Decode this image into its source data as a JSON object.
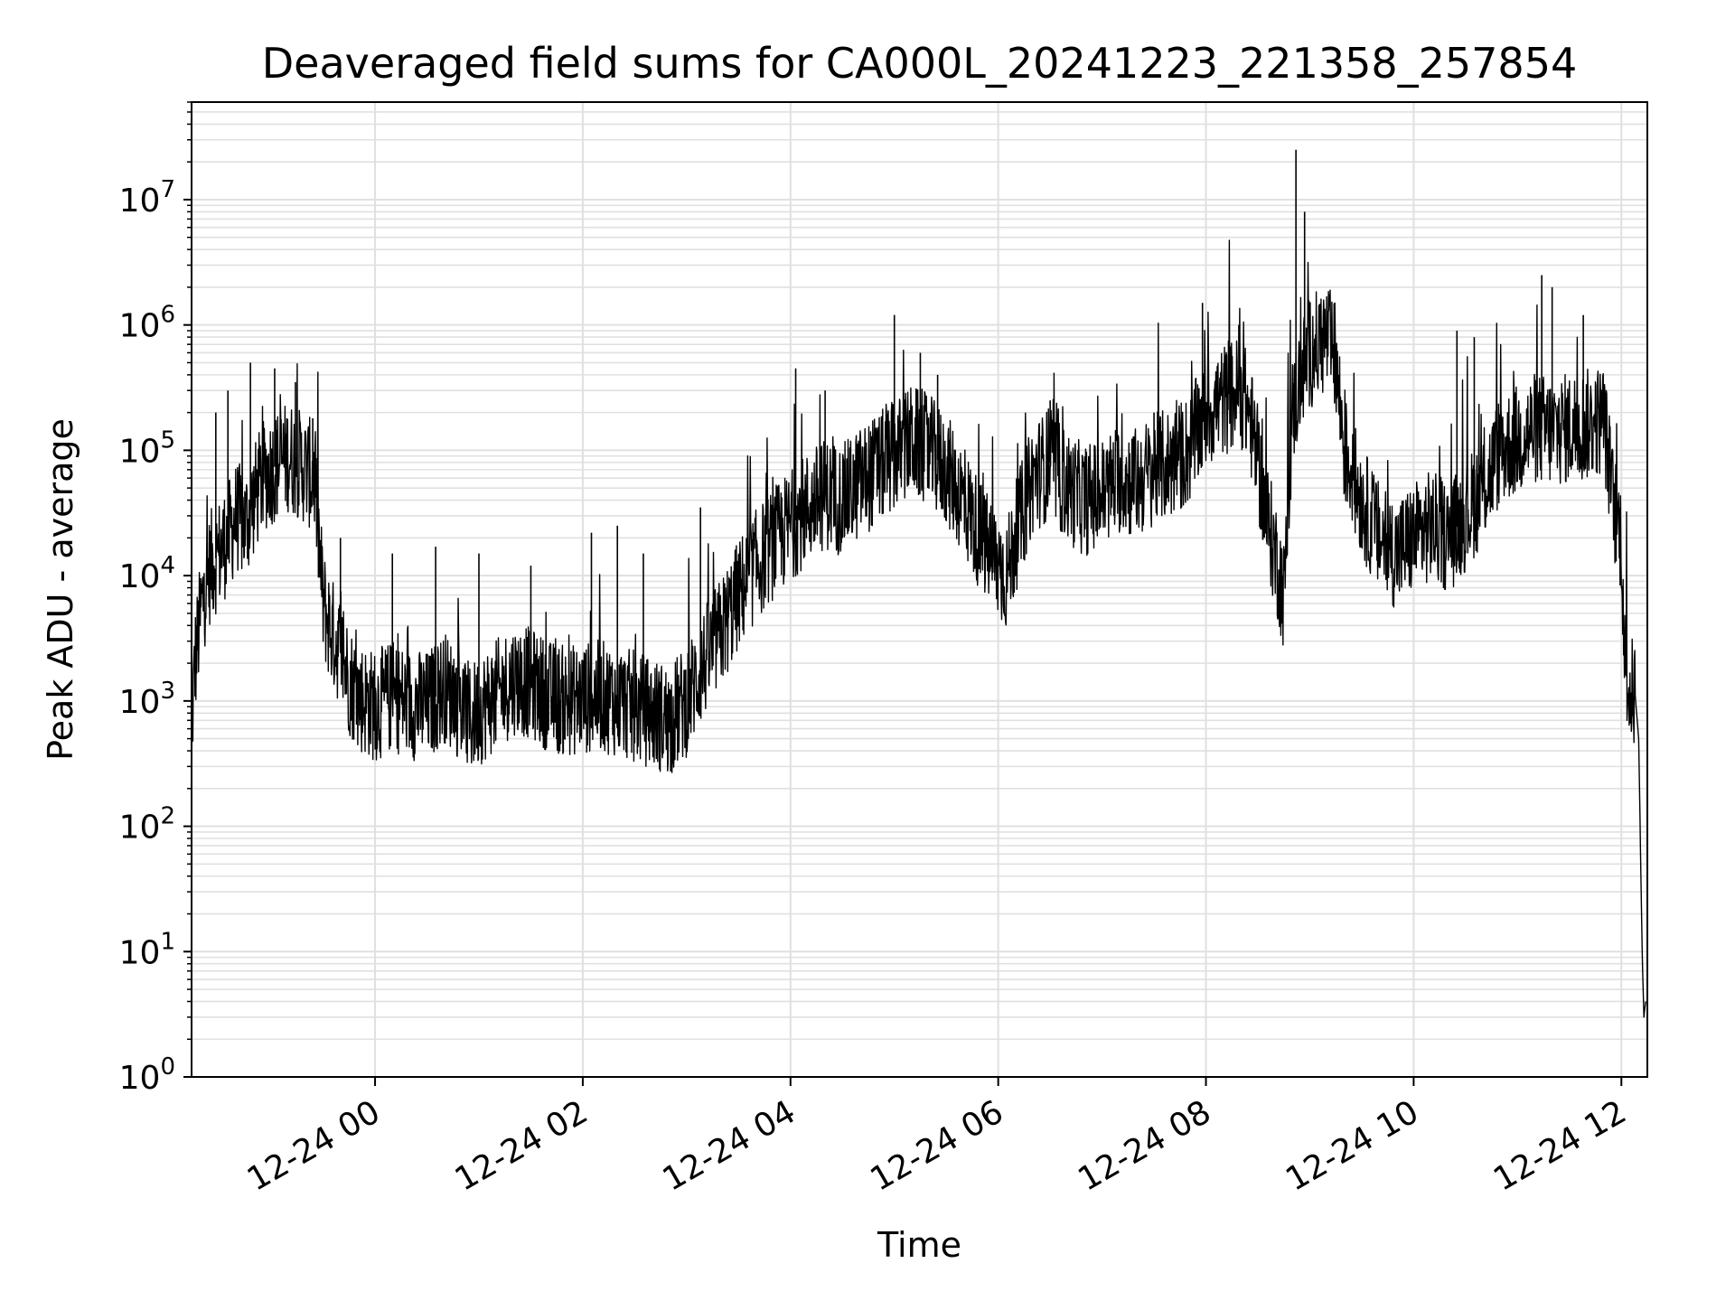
{
  "chart_data": {
    "type": "line",
    "title": "Deaveraged field sums for CA000L_20241223_221358_257854",
    "xlabel": "Time",
    "ylabel": "Peak ADU - average",
    "yscale": "log",
    "ylim": [
      1,
      60000000
    ],
    "xlim": [
      "2024-12-23 22:14",
      "2024-12-24 12:15"
    ],
    "grid": true,
    "line_color": "#000000",
    "grid_color": "#e0e0e0",
    "x_ticks": [
      {
        "time": "2024-12-24 00:00",
        "label": "12-24 00"
      },
      {
        "time": "2024-12-24 02:00",
        "label": "12-24 02"
      },
      {
        "time": "2024-12-24 04:00",
        "label": "12-24 04"
      },
      {
        "time": "2024-12-24 06:00",
        "label": "12-24 06"
      },
      {
        "time": "2024-12-24 08:00",
        "label": "12-24 08"
      },
      {
        "time": "2024-12-24 10:00",
        "label": "12-24 10"
      },
      {
        "time": "2024-12-24 12:00",
        "label": "12-24 12"
      }
    ],
    "y_ticks": [
      {
        "value": 1,
        "base": "10",
        "exp": "0"
      },
      {
        "value": 10,
        "base": "10",
        "exp": "1"
      },
      {
        "value": 100,
        "base": "10",
        "exp": "2"
      },
      {
        "value": 1000,
        "base": "10",
        "exp": "3"
      },
      {
        "value": 10000,
        "base": "10",
        "exp": "4"
      },
      {
        "value": 100000,
        "base": "10",
        "exp": "5"
      },
      {
        "value": 1000000,
        "base": "10",
        "exp": "6"
      },
      {
        "value": 10000000,
        "base": "10",
        "exp": "7"
      }
    ],
    "series": [
      {
        "points": [
          [
            "2024-12-23 22:14",
            600
          ],
          [
            "2024-12-23 22:16",
            2000
          ],
          [
            "2024-12-23 22:20",
            6000
          ],
          [
            "2024-12-23 22:25",
            12000
          ],
          [
            "2024-12-23 22:30",
            15000
          ],
          [
            "2024-12-23 22:35",
            20000
          ],
          [
            "2024-12-23 22:40",
            30000
          ],
          [
            "2024-12-23 22:45",
            25000
          ],
          [
            "2024-12-23 22:50",
            40000
          ],
          [
            "2024-12-23 22:55",
            60000
          ],
          [
            "2024-12-23 23:00",
            70000
          ],
          [
            "2024-12-23 23:05",
            80000
          ],
          [
            "2024-12-23 23:10",
            90000
          ],
          [
            "2024-12-23 23:15",
            80000
          ],
          [
            "2024-12-23 23:20",
            70000
          ],
          [
            "2024-12-23 23:25",
            60000
          ],
          [
            "2024-12-23 23:28",
            15000
          ],
          [
            "2024-12-23 23:30",
            6000
          ],
          [
            "2024-12-23 23:35",
            3500
          ],
          [
            "2024-12-23 23:40",
            2500
          ],
          [
            "2024-12-23 23:45",
            1500
          ],
          [
            "2024-12-23 23:50",
            1100
          ],
          [
            "2024-12-23 23:55",
            1000
          ],
          [
            "2024-12-24 00:00",
            900
          ],
          [
            "2024-12-24 00:10",
            1100
          ],
          [
            "2024-12-24 00:20",
            950
          ],
          [
            "2024-12-24 00:30",
            900
          ],
          [
            "2024-12-24 00:40",
            1300
          ],
          [
            "2024-12-24 00:50",
            900
          ],
          [
            "2024-12-24 00:55",
            700
          ],
          [
            "2024-12-24 01:00",
            850
          ],
          [
            "2024-12-24 01:10",
            1100
          ],
          [
            "2024-12-24 01:20",
            1500
          ],
          [
            "2024-12-24 01:30",
            1400
          ],
          [
            "2024-12-24 01:40",
            1100
          ],
          [
            "2024-12-24 01:50",
            1000
          ],
          [
            "2024-12-24 02:00",
            1050
          ],
          [
            "2024-12-24 02:10",
            1100
          ],
          [
            "2024-12-24 02:20",
            1000
          ],
          [
            "2024-12-24 02:30",
            900
          ],
          [
            "2024-12-24 02:40",
            800
          ],
          [
            "2024-12-24 02:50",
            700
          ],
          [
            "2024-12-24 03:00",
            1000
          ],
          [
            "2024-12-24 03:10",
            2000
          ],
          [
            "2024-12-24 03:20",
            3500
          ],
          [
            "2024-12-24 03:30",
            7000
          ],
          [
            "2024-12-24 03:40",
            12000
          ],
          [
            "2024-12-24 03:50",
            18000
          ],
          [
            "2024-12-24 04:00",
            25000
          ],
          [
            "2024-12-24 04:10",
            35000
          ],
          [
            "2024-12-24 04:20",
            45000
          ],
          [
            "2024-12-24 04:30",
            40000
          ],
          [
            "2024-12-24 04:40",
            55000
          ],
          [
            "2024-12-24 04:50",
            70000
          ],
          [
            "2024-12-24 05:00",
            90000
          ],
          [
            "2024-12-24 05:10",
            120000
          ],
          [
            "2024-12-24 05:20",
            100000
          ],
          [
            "2024-12-24 05:30",
            70000
          ],
          [
            "2024-12-24 05:40",
            40000
          ],
          [
            "2024-12-24 05:50",
            20000
          ],
          [
            "2024-12-24 06:00",
            12000
          ],
          [
            "2024-12-24 06:05",
            10000
          ],
          [
            "2024-12-24 06:10",
            20000
          ],
          [
            "2024-12-24 06:20",
            60000
          ],
          [
            "2024-12-24 06:30",
            80000
          ],
          [
            "2024-12-24 06:40",
            50000
          ],
          [
            "2024-12-24 06:50",
            40000
          ],
          [
            "2024-12-24 07:00",
            45000
          ],
          [
            "2024-12-24 07:10",
            60000
          ],
          [
            "2024-12-24 07:20",
            55000
          ],
          [
            "2024-12-24 07:30",
            70000
          ],
          [
            "2024-12-24 07:40",
            80000
          ],
          [
            "2024-12-24 07:50",
            100000
          ],
          [
            "2024-12-24 08:00",
            200000
          ],
          [
            "2024-12-24 08:10",
            250000
          ],
          [
            "2024-12-24 08:20",
            300000
          ],
          [
            "2024-12-24 08:25",
            200000
          ],
          [
            "2024-12-24 08:30",
            80000
          ],
          [
            "2024-12-24 08:35",
            30000
          ],
          [
            "2024-12-24 08:40",
            15000
          ],
          [
            "2024-12-24 08:45",
            7000
          ],
          [
            "2024-12-24 08:50",
            200000
          ],
          [
            "2024-12-24 08:55",
            400000
          ],
          [
            "2024-12-24 09:00",
            600000
          ],
          [
            "2024-12-24 09:10",
            800000
          ],
          [
            "2024-12-24 09:15",
            500000
          ],
          [
            "2024-12-24 09:20",
            100000
          ],
          [
            "2024-12-24 09:30",
            40000
          ],
          [
            "2024-12-24 09:40",
            20000
          ],
          [
            "2024-12-24 09:50",
            15000
          ],
          [
            "2024-12-24 10:00",
            20000
          ],
          [
            "2024-12-24 10:10",
            25000
          ],
          [
            "2024-12-24 10:20",
            20000
          ],
          [
            "2024-12-24 10:30",
            30000
          ],
          [
            "2024-12-24 10:40",
            50000
          ],
          [
            "2024-12-24 10:50",
            100000
          ],
          [
            "2024-12-24 11:00",
            120000
          ],
          [
            "2024-12-24 11:10",
            150000
          ],
          [
            "2024-12-24 11:20",
            140000
          ],
          [
            "2024-12-24 11:30",
            150000
          ],
          [
            "2024-12-24 11:40",
            160000
          ],
          [
            "2024-12-24 11:50",
            180000
          ],
          [
            "2024-12-24 11:55",
            40000
          ],
          [
            "2024-12-24 12:00",
            20000
          ],
          [
            "2024-12-24 12:02",
            2000
          ],
          [
            "2024-12-24 12:05",
            1200
          ],
          [
            "2024-12-24 12:08",
            1100
          ],
          [
            "2024-12-24 12:10",
            500
          ],
          [
            "2024-12-24 12:12",
            10
          ],
          [
            "2024-12-24 12:13",
            3
          ],
          [
            "2024-12-24 12:14",
            4
          ]
        ],
        "spikes": [
          [
            "2024-12-23 22:28",
            200000
          ],
          [
            "2024-12-23 22:35",
            300000
          ],
          [
            "2024-12-23 22:48",
            500000
          ],
          [
            "2024-12-23 23:02",
            450000
          ],
          [
            "2024-12-23 23:14",
            350000
          ],
          [
            "2024-12-23 23:24",
            180000
          ],
          [
            "2024-12-23 23:40",
            20000
          ],
          [
            "2024-12-24 00:10",
            15000
          ],
          [
            "2024-12-24 00:35",
            17000
          ],
          [
            "2024-12-24 01:00",
            15000
          ],
          [
            "2024-12-24 01:30",
            12000
          ],
          [
            "2024-12-24 02:05",
            22000
          ],
          [
            "2024-12-24 02:20",
            25000
          ],
          [
            "2024-12-24 02:35",
            15000
          ],
          [
            "2024-12-24 03:08",
            35000
          ],
          [
            "2024-12-24 04:03",
            450000
          ],
          [
            "2024-12-24 04:20",
            300000
          ],
          [
            "2024-12-24 05:00",
            1200000
          ],
          [
            "2024-12-24 05:15",
            600000
          ],
          [
            "2024-12-24 05:25",
            400000
          ],
          [
            "2024-12-24 06:30",
            250000
          ],
          [
            "2024-12-24 07:30",
            200000
          ],
          [
            "2024-12-24 07:58",
            1500000
          ],
          [
            "2024-12-24 08:19",
            1000000
          ],
          [
            "2024-12-24 08:52",
            25000000
          ],
          [
            "2024-12-24 08:57",
            8000000
          ],
          [
            "2024-12-24 09:08",
            1300000
          ],
          [
            "2024-12-24 10:25",
            900000
          ],
          [
            "2024-12-24 10:35",
            800000
          ],
          [
            "2024-12-24 11:14",
            2500000
          ],
          [
            "2024-12-24 11:20",
            2000000
          ],
          [
            "2024-12-24 11:38",
            1200000
          ]
        ]
      }
    ]
  }
}
